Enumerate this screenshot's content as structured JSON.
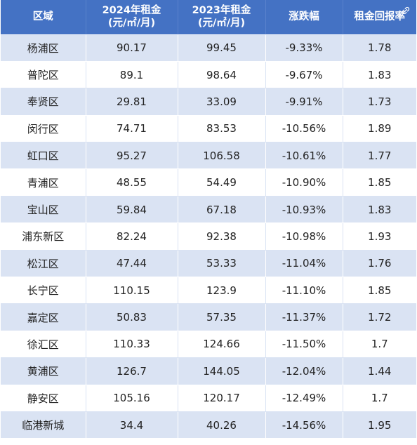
{
  "headers": {
    "region": "区域",
    "rent2024_line1": "2024年租金",
    "rent2024_line2": "(元/㎡/月)",
    "rent2023_line1": "2023年租金",
    "rent2023_line2": "(元/㎡/月)",
    "change": "涨跌幅",
    "yield": "租金回报率"
  },
  "rows": [
    {
      "region": "杨浦区",
      "rent2024": "90.17",
      "rent2023": "99.45",
      "change": "-9.33%",
      "yield": "1.78"
    },
    {
      "region": "普陀区",
      "rent2024": "89.1",
      "rent2023": "98.64",
      "change": "-9.67%",
      "yield": "1.83"
    },
    {
      "region": "奉贤区",
      "rent2024": "29.81",
      "rent2023": "33.09",
      "change": "-9.91%",
      "yield": "1.73"
    },
    {
      "region": "闵行区",
      "rent2024": "74.71",
      "rent2023": "83.53",
      "change": "-10.56%",
      "yield": "1.89"
    },
    {
      "region": "虹口区",
      "rent2024": "95.27",
      "rent2023": "106.58",
      "change": "-10.61%",
      "yield": "1.77"
    },
    {
      "region": "青浦区",
      "rent2024": "48.55",
      "rent2023": "54.49",
      "change": "-10.90%",
      "yield": "1.85"
    },
    {
      "region": "宝山区",
      "rent2024": "59.84",
      "rent2023": "67.18",
      "change": "-10.93%",
      "yield": "1.83"
    },
    {
      "region": "浦东新区",
      "rent2024": "82.24",
      "rent2023": "92.38",
      "change": "-10.98%",
      "yield": "1.93"
    },
    {
      "region": "松江区",
      "rent2024": "47.44",
      "rent2023": "53.33",
      "change": "-11.04%",
      "yield": "1.76"
    },
    {
      "region": "长宁区",
      "rent2024": "110.15",
      "rent2023": "123.9",
      "change": "-11.10%",
      "yield": "1.85"
    },
    {
      "region": "嘉定区",
      "rent2024": "50.83",
      "rent2023": "57.35",
      "change": "-11.37%",
      "yield": "1.72"
    },
    {
      "region": "徐汇区",
      "rent2024": "110.33",
      "rent2023": "124.66",
      "change": "-11.50%",
      "yield": "1.7"
    },
    {
      "region": "黄浦区",
      "rent2024": "126.7",
      "rent2023": "144.05",
      "change": "-12.04%",
      "yield": "1.44"
    },
    {
      "region": "静安区",
      "rent2024": "105.16",
      "rent2023": "120.17",
      "change": "-12.49%",
      "yield": "1.7"
    },
    {
      "region": "临港新城",
      "rent2024": "34.4",
      "rent2023": "40.26",
      "change": "-14.56%",
      "yield": "1.95"
    }
  ],
  "colors": {
    "header_bg": "#4472c4",
    "band_bg": "#dae3f3",
    "plain_bg": "#ffffff",
    "text": "#222222"
  },
  "icons": {
    "corner": "link-icon"
  }
}
